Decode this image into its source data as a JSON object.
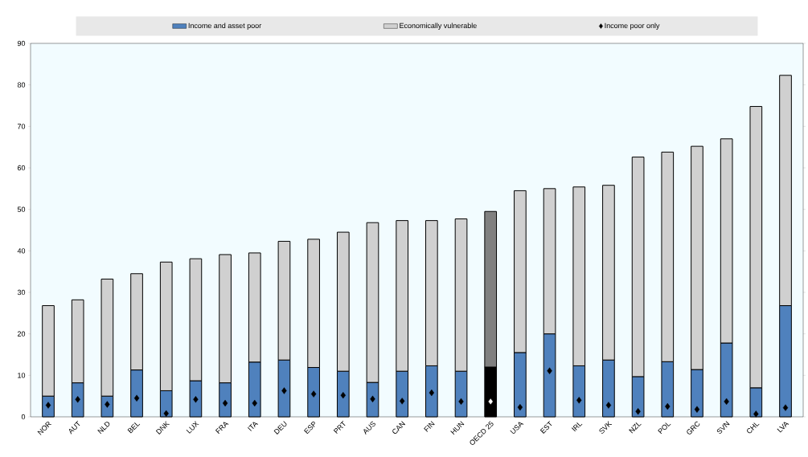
{
  "chart_data": {
    "type": "bar",
    "stacked": true,
    "legend": "top",
    "ylim": [
      0,
      90
    ],
    "yticks": [
      0,
      10,
      20,
      30,
      40,
      50,
      60,
      70,
      80,
      90
    ],
    "categories": [
      "NOR",
      "AUT",
      "NLD",
      "BEL",
      "DNK",
      "LUX",
      "FRA",
      "ITA",
      "DEU",
      "ESP",
      "PRT",
      "AUS",
      "CAN",
      "FIN",
      "HUN",
      "OECD 25",
      "USA",
      "EST",
      "IRL",
      "SVK",
      "NZL",
      "POL",
      "GRC",
      "SVN",
      "CHL",
      "LVA"
    ],
    "series": [
      {
        "name": "Income and asset poor",
        "color": "#4f81bd",
        "colors": [
          "#4f81bd",
          "#4f81bd",
          "#4f81bd",
          "#4f81bd",
          "#4f81bd",
          "#4f81bd",
          "#4f81bd",
          "#4f81bd",
          "#4f81bd",
          "#4f81bd",
          "#4f81bd",
          "#4f81bd",
          "#4f81bd",
          "#4f81bd",
          "#4f81bd",
          "#000000",
          "#4f81bd",
          "#4f81bd",
          "#4f81bd",
          "#4f81bd",
          "#4f81bd",
          "#4f81bd",
          "#4f81bd",
          "#4f81bd",
          "#4f81bd",
          "#4f81bd"
        ],
        "values": [
          5,
          8.2,
          5,
          11.3,
          6.3,
          8.7,
          8.2,
          13.2,
          13.7,
          11.9,
          11,
          8.3,
          11,
          12.3,
          11,
          12,
          15.5,
          20,
          12.3,
          13.7,
          9.7,
          13.3,
          11.4,
          17.8,
          7,
          26.8
        ]
      },
      {
        "name": "Economically vulnerable",
        "color": "#d0d0d0",
        "colors": [
          "#d0d0d0",
          "#d0d0d0",
          "#d0d0d0",
          "#d0d0d0",
          "#d0d0d0",
          "#d0d0d0",
          "#d0d0d0",
          "#d0d0d0",
          "#d0d0d0",
          "#d0d0d0",
          "#d0d0d0",
          "#d0d0d0",
          "#d0d0d0",
          "#d0d0d0",
          "#d0d0d0",
          "#808080",
          "#d0d0d0",
          "#d0d0d0",
          "#d0d0d0",
          "#d0d0d0",
          "#d0d0d0",
          "#d0d0d0",
          "#d0d0d0",
          "#d0d0d0",
          "#d0d0d0",
          "#d0d0d0"
        ],
        "values": [
          21.8,
          20,
          28.2,
          23.2,
          31,
          29.4,
          30.9,
          26.3,
          28.6,
          30.9,
          33.5,
          38.5,
          36.3,
          35,
          36.7,
          37.5,
          39,
          35,
          43.1,
          42.1,
          52.9,
          50.5,
          53.8,
          49.2,
          67.8,
          55.5
        ]
      },
      {
        "name": "Income poor only",
        "type": "scatter",
        "marker": "diamond",
        "color": "#000000",
        "colors": [
          "#000000",
          "#000000",
          "#000000",
          "#000000",
          "#000000",
          "#000000",
          "#000000",
          "#000000",
          "#000000",
          "#000000",
          "#000000",
          "#000000",
          "#000000",
          "#000000",
          "#000000",
          "#ffffff",
          "#000000",
          "#000000",
          "#000000",
          "#000000",
          "#000000",
          "#000000",
          "#000000",
          "#000000",
          "#000000",
          "#000000"
        ],
        "values": [
          2.8,
          4.2,
          3,
          4.5,
          0.8,
          4.2,
          3.3,
          3.3,
          6.3,
          5.5,
          5.2,
          4.3,
          3.8,
          5.8,
          3.7,
          3.7,
          2.3,
          11.1,
          4,
          2.8,
          1.3,
          2.5,
          1.8,
          3.7,
          0.7,
          2.2
        ]
      }
    ]
  }
}
